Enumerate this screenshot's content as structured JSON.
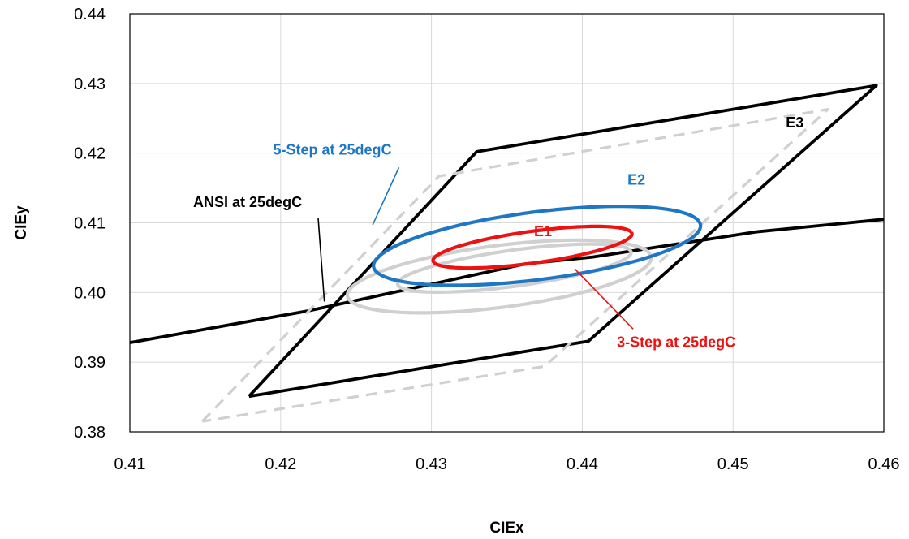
{
  "chart_data": {
    "type": "line",
    "title": "",
    "xlabel": "CIEx",
    "ylabel": "CIEy",
    "xlim": [
      0.41,
      0.46
    ],
    "ylim": [
      0.38,
      0.44
    ],
    "x_ticks": [
      "0.41",
      "0.42",
      "0.43",
      "0.44",
      "0.45",
      "0.46"
    ],
    "y_ticks": [
      "0.38",
      "0.39",
      "0.40",
      "0.41",
      "0.42",
      "0.43",
      "0.44"
    ],
    "grid": true,
    "legend": "none",
    "colors": {
      "black": "#000000",
      "blue": "#1f77c4",
      "red": "#ee1111",
      "gray": "#d0d0d0",
      "grid": "#d9d9d9"
    },
    "series": [
      {
        "kind": "polyline",
        "style": "black",
        "x": [
          0.41,
          0.4219,
          0.4362,
          0.4407,
          0.4515,
          0.46
        ],
        "y": [
          0.3928,
          0.3974,
          0.4041,
          0.4051,
          0.4087,
          0.4105
        ]
      },
      {
        "kind": "polyline",
        "style": "black",
        "x": [
          0.4179,
          0.433,
          0.4595,
          0.4404,
          0.4179
        ],
        "y": [
          0.3851,
          0.4202,
          0.4297,
          0.393,
          0.3851
        ]
      },
      {
        "kind": "polyline",
        "style": "dashed-gray",
        "x": [
          0.4148,
          0.4305,
          0.4563,
          0.4375,
          0.4148
        ],
        "y": [
          0.3815,
          0.4167,
          0.4263,
          0.3894,
          0.3815
        ]
      },
      {
        "kind": "ellipse",
        "style": "gray",
        "center": [
          0.4345,
          0.4023
        ],
        "semi_major": 0.0105,
        "semi_minor": 0.0043,
        "angle_deg": 18
      },
      {
        "kind": "ellipse",
        "style": "gray",
        "center": [
          0.4355,
          0.4035
        ],
        "semi_major": 0.0081,
        "semi_minor": 0.0025,
        "angle_deg": 18
      },
      {
        "kind": "ellipse",
        "style": "blue",
        "center": [
          0.437,
          0.4067
        ],
        "semi_major": 0.0113,
        "semi_minor": 0.0047,
        "angle_deg": 18
      },
      {
        "kind": "ellipse",
        "style": "red",
        "center": [
          0.4367,
          0.4065
        ],
        "semi_major": 0.0069,
        "semi_minor": 0.0022,
        "angle_deg": 18
      }
    ],
    "annotations": [
      {
        "text": "5-Step at 25degC",
        "color": "blue",
        "at": [
          0.4195,
          0.4198
        ],
        "arrow_to": [
          0.4261,
          0.4097
        ]
      },
      {
        "text": "ANSI at 25degC",
        "color": "black",
        "at": [
          0.4142,
          0.4123
        ],
        "arrow_to": [
          0.4229,
          0.3987
        ]
      },
      {
        "text": "3-Step at 25degC",
        "color": "red",
        "at": [
          0.4423,
          0.3922
        ],
        "arrow_to": [
          0.4395,
          0.4034
        ]
      },
      {
        "text": "E1",
        "color": "red",
        "at": [
          0.4368,
          0.4081
        ]
      },
      {
        "text": "E2",
        "color": "blue",
        "at": [
          0.443,
          0.4155
        ]
      },
      {
        "text": "E3",
        "color": "black",
        "at": [
          0.4535,
          0.4237
        ]
      }
    ]
  }
}
